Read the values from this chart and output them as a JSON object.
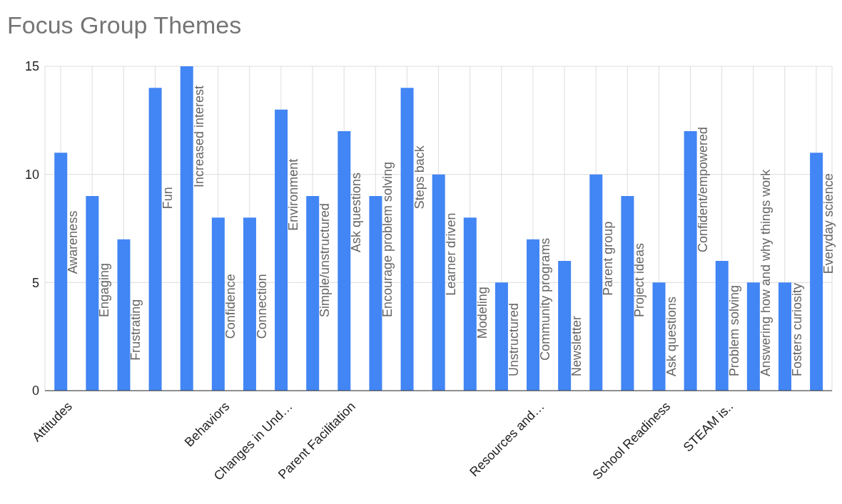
{
  "chart_data": {
    "type": "bar",
    "title": "Focus Group Themes",
    "categories": [
      "Attitudes",
      null,
      null,
      null,
      null,
      "Behaviors",
      null,
      "Changes in Und…",
      null,
      "Parent Facilitation",
      null,
      null,
      null,
      null,
      null,
      "Resources and…",
      null,
      null,
      null,
      "School Readiness",
      null,
      "STEAM is..",
      null,
      null,
      null
    ],
    "values": [
      11,
      9,
      7,
      14,
      15,
      8,
      8,
      13,
      9,
      12,
      9,
      14,
      10,
      8,
      5,
      7,
      6,
      10,
      9,
      5,
      12,
      6,
      5,
      5,
      11
    ],
    "value_labels": [
      "Awareness",
      "Engaging",
      "Frustrating",
      "Fun",
      "Increased interest",
      "Confidence",
      "Connection",
      "Environment",
      "Simple/unstructured",
      "Ask questions",
      "Encourage problem solving",
      "Steps back",
      "Learner driven",
      "Modeling",
      "Unstructured",
      "Community programs",
      "Newsletter",
      "Parent group",
      "Project ideas",
      "Ask questions",
      "Confident/empowered",
      "Problem solving",
      "Answering how and why things work",
      "Fosters curiosity",
      "Everyday science"
    ],
    "color": "#4285f4",
    "ylim": [
      0,
      15
    ],
    "yticks": [
      0,
      5,
      10,
      15
    ],
    "grid": true
  }
}
